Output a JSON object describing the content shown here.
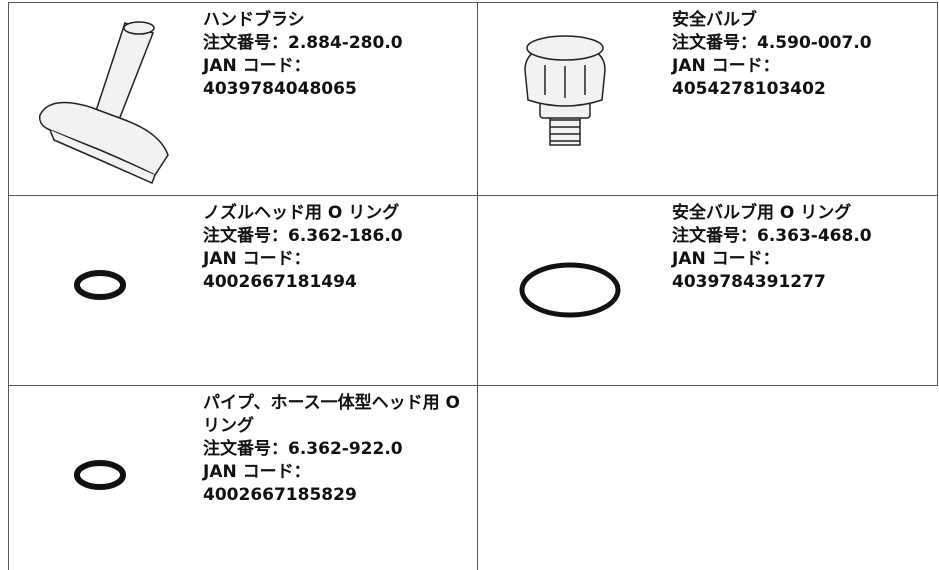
{
  "parts": [
    {
      "name": "ハンドブラシ",
      "order": "注文番号：2.884-280.0",
      "jan_label": "JAN コード：",
      "jan": "4039784048065"
    },
    {
      "name": "安全バルブ",
      "order": "注文番号：4.590-007.0",
      "jan_label": "JAN コード：",
      "jan": "4054278103402"
    },
    {
      "name": "ノズルヘッド用 O リング",
      "order": "注文番号：6.362-186.0",
      "jan_label": "JAN コード：",
      "jan": "4002667181494"
    },
    {
      "name": "安全バルブ用 O リング",
      "order": "注文番号：6.363-468.0",
      "jan_label": "JAN コード：",
      "jan": "4039784391277"
    },
    {
      "name": "パイプ、ホース一体型ヘッド用 O リング",
      "order": "注文番号：6.362-922.0",
      "jan_label": "JAN コード：",
      "jan": "4002667185829"
    }
  ]
}
